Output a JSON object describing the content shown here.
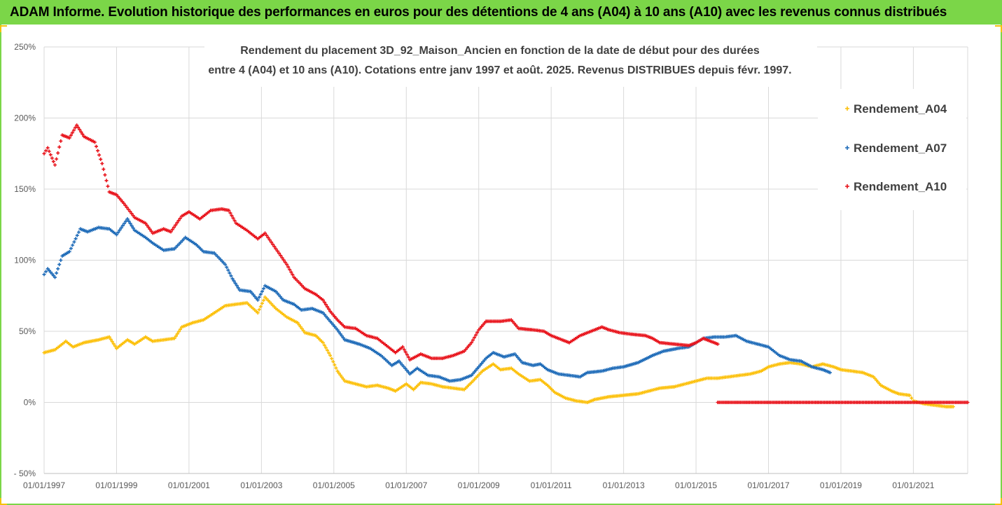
{
  "header": {
    "title": "ADAM Informe. Evolution historique des performances en euros pour des détentions de 4 ans (A04) à 10 ans (A10) avec les revenus connus distribués"
  },
  "chart_data": {
    "type": "scatter",
    "subtitle_line1": "Rendement du placement 3D_92_Maison_Ancien en fonction de la date de début pour des durées",
    "subtitle_line2": "entre 4 (A04) et 10 ans (A10). Cotations entre janv 1997 et août. 2025. Revenus DISTRIBUES depuis févr. 1997.",
    "ylim": [
      -50,
      250
    ],
    "yticks": [
      "250%",
      "200%",
      "150%",
      "100%",
      "50%",
      "0%",
      "- 50%"
    ],
    "ytick_values": [
      250,
      200,
      150,
      100,
      50,
      0,
      -50
    ],
    "xlim": [
      1997.0,
      2022.5
    ],
    "xticks": [
      "01/01/1997",
      "01/01/1999",
      "01/01/2001",
      "01/01/2003",
      "01/01/2005",
      "01/01/2007",
      "01/01/2009",
      "01/01/2011",
      "01/01/2013",
      "01/01/2015",
      "01/01/2017",
      "01/01/2019",
      "01/01/2021"
    ],
    "xtick_values": [
      1997,
      1999,
      2001,
      2003,
      2005,
      2007,
      2009,
      2011,
      2013,
      2015,
      2017,
      2019,
      2021
    ],
    "grid": true,
    "legend_position": "right",
    "series": [
      {
        "name": "Rendement_A04",
        "color": "#fcc00a",
        "points": [
          [
            1997.0,
            35
          ],
          [
            1997.3,
            37
          ],
          [
            1997.6,
            43
          ],
          [
            1997.8,
            39
          ],
          [
            1998.1,
            42
          ],
          [
            1998.5,
            44
          ],
          [
            1998.8,
            46
          ],
          [
            1999.0,
            38
          ],
          [
            1999.3,
            44
          ],
          [
            1999.5,
            41
          ],
          [
            1999.8,
            46
          ],
          [
            2000.0,
            43
          ],
          [
            2000.3,
            44
          ],
          [
            2000.6,
            45
          ],
          [
            2000.8,
            53
          ],
          [
            2001.1,
            56
          ],
          [
            2001.4,
            58
          ],
          [
            2001.7,
            63
          ],
          [
            2002.0,
            68
          ],
          [
            2002.3,
            69
          ],
          [
            2002.6,
            70
          ],
          [
            2002.9,
            63
          ],
          [
            2003.1,
            74
          ],
          [
            2003.4,
            66
          ],
          [
            2003.7,
            60
          ],
          [
            2004.0,
            56
          ],
          [
            2004.2,
            49
          ],
          [
            2004.5,
            47
          ],
          [
            2004.7,
            42
          ],
          [
            2004.9,
            33
          ],
          [
            2005.1,
            22
          ],
          [
            2005.3,
            15
          ],
          [
            2005.6,
            13
          ],
          [
            2005.9,
            11
          ],
          [
            2006.2,
            12
          ],
          [
            2006.5,
            10
          ],
          [
            2006.7,
            8
          ],
          [
            2007.0,
            13
          ],
          [
            2007.2,
            9
          ],
          [
            2007.4,
            14
          ],
          [
            2007.7,
            13
          ],
          [
            2008.0,
            11
          ],
          [
            2008.3,
            10
          ],
          [
            2008.6,
            9
          ],
          [
            2008.8,
            14
          ],
          [
            2009.1,
            22
          ],
          [
            2009.4,
            27
          ],
          [
            2009.6,
            23
          ],
          [
            2009.9,
            24
          ],
          [
            2010.1,
            20
          ],
          [
            2010.4,
            15
          ],
          [
            2010.7,
            16
          ],
          [
            2010.9,
            12
          ],
          [
            2011.1,
            7
          ],
          [
            2011.4,
            3
          ],
          [
            2011.7,
            1
          ],
          [
            2012.0,
            0
          ],
          [
            2012.2,
            2
          ],
          [
            2012.6,
            4
          ],
          [
            2013.0,
            5
          ],
          [
            2013.4,
            6
          ],
          [
            2013.7,
            8
          ],
          [
            2014.0,
            10
          ],
          [
            2014.4,
            11
          ],
          [
            2014.7,
            13
          ],
          [
            2015.0,
            15
          ],
          [
            2015.3,
            17
          ],
          [
            2015.6,
            17
          ],
          [
            2015.9,
            18
          ],
          [
            2016.2,
            19
          ],
          [
            2016.5,
            20
          ],
          [
            2016.8,
            22
          ],
          [
            2017.0,
            25
          ],
          [
            2017.3,
            27
          ],
          [
            2017.6,
            28
          ],
          [
            2017.9,
            27
          ],
          [
            2018.2,
            25
          ],
          [
            2018.5,
            27
          ],
          [
            2018.8,
            25
          ],
          [
            2019.0,
            23
          ],
          [
            2019.3,
            22
          ],
          [
            2019.6,
            21
          ],
          [
            2019.9,
            18
          ],
          [
            2020.1,
            12
          ],
          [
            2020.4,
            8
          ],
          [
            2020.6,
            6
          ],
          [
            2020.9,
            5
          ],
          [
            2021.0,
            1
          ],
          [
            2021.3,
            -1
          ],
          [
            2021.6,
            -2
          ],
          [
            2021.9,
            -3
          ],
          [
            2022.1,
            -3
          ]
        ]
      },
      {
        "name": "Rendement_A07",
        "color": "#1e6bb8",
        "points": [
          [
            1997.0,
            90
          ],
          [
            1997.1,
            94
          ],
          [
            1997.3,
            88
          ],
          [
            1997.5,
            103
          ],
          [
            1997.7,
            106
          ],
          [
            1998.0,
            122
          ],
          [
            1998.2,
            120
          ],
          [
            1998.5,
            123
          ],
          [
            1998.8,
            122
          ],
          [
            1999.0,
            118
          ],
          [
            1999.3,
            129
          ],
          [
            1999.5,
            121
          ],
          [
            1999.8,
            116
          ],
          [
            2000.0,
            112
          ],
          [
            2000.3,
            107
          ],
          [
            2000.6,
            108
          ],
          [
            2000.9,
            116
          ],
          [
            2001.2,
            111
          ],
          [
            2001.4,
            106
          ],
          [
            2001.7,
            105
          ],
          [
            2002.0,
            97
          ],
          [
            2002.2,
            87
          ],
          [
            2002.4,
            79
          ],
          [
            2002.7,
            78
          ],
          [
            2002.9,
            72
          ],
          [
            2003.1,
            82
          ],
          [
            2003.4,
            78
          ],
          [
            2003.6,
            72
          ],
          [
            2003.9,
            69
          ],
          [
            2004.1,
            65
          ],
          [
            2004.4,
            66
          ],
          [
            2004.7,
            63
          ],
          [
            2004.9,
            57
          ],
          [
            2005.1,
            51
          ],
          [
            2005.3,
            44
          ],
          [
            2005.7,
            41
          ],
          [
            2006.0,
            38
          ],
          [
            2006.3,
            33
          ],
          [
            2006.6,
            26
          ],
          [
            2006.8,
            29
          ],
          [
            2007.1,
            20
          ],
          [
            2007.3,
            24
          ],
          [
            2007.6,
            19
          ],
          [
            2007.9,
            18
          ],
          [
            2008.2,
            15
          ],
          [
            2008.5,
            16
          ],
          [
            2008.8,
            19
          ],
          [
            2009.0,
            25
          ],
          [
            2009.2,
            31
          ],
          [
            2009.4,
            35
          ],
          [
            2009.7,
            32
          ],
          [
            2010.0,
            34
          ],
          [
            2010.2,
            28
          ],
          [
            2010.5,
            26
          ],
          [
            2010.7,
            27
          ],
          [
            2010.9,
            23
          ],
          [
            2011.2,
            20
          ],
          [
            2011.5,
            19
          ],
          [
            2011.8,
            18
          ],
          [
            2012.0,
            21
          ],
          [
            2012.4,
            22
          ],
          [
            2012.7,
            24
          ],
          [
            2013.0,
            25
          ],
          [
            2013.4,
            28
          ],
          [
            2013.8,
            33
          ],
          [
            2014.1,
            36
          ],
          [
            2014.5,
            38
          ],
          [
            2014.8,
            39
          ],
          [
            2015.0,
            42
          ],
          [
            2015.2,
            45
          ],
          [
            2015.5,
            46
          ],
          [
            2015.8,
            46
          ],
          [
            2016.1,
            47
          ],
          [
            2016.4,
            43
          ],
          [
            2016.7,
            41
          ],
          [
            2017.0,
            39
          ],
          [
            2017.3,
            33
          ],
          [
            2017.6,
            30
          ],
          [
            2017.9,
            29
          ],
          [
            2018.2,
            25
          ],
          [
            2018.5,
            23
          ],
          [
            2018.7,
            21
          ]
        ]
      },
      {
        "name": "Rendement_A10",
        "color": "#e8131b",
        "points": [
          [
            1997.0,
            175
          ],
          [
            1997.1,
            179
          ],
          [
            1997.3,
            167
          ],
          [
            1997.5,
            188
          ],
          [
            1997.7,
            186
          ],
          [
            1997.9,
            195
          ],
          [
            1998.1,
            187
          ],
          [
            1998.4,
            183
          ],
          [
            1998.6,
            168
          ],
          [
            1998.8,
            148
          ],
          [
            1999.0,
            146
          ],
          [
            1999.2,
            140
          ],
          [
            1999.5,
            130
          ],
          [
            1999.8,
            126
          ],
          [
            2000.0,
            119
          ],
          [
            2000.3,
            122
          ],
          [
            2000.5,
            120
          ],
          [
            2000.8,
            131
          ],
          [
            2001.0,
            134
          ],
          [
            2001.3,
            129
          ],
          [
            2001.6,
            135
          ],
          [
            2001.9,
            136
          ],
          [
            2002.1,
            135
          ],
          [
            2002.3,
            126
          ],
          [
            2002.6,
            121
          ],
          [
            2002.9,
            115
          ],
          [
            2003.1,
            119
          ],
          [
            2003.4,
            108
          ],
          [
            2003.7,
            97
          ],
          [
            2003.9,
            88
          ],
          [
            2004.2,
            80
          ],
          [
            2004.5,
            76
          ],
          [
            2004.7,
            72
          ],
          [
            2004.9,
            64
          ],
          [
            2005.1,
            58
          ],
          [
            2005.3,
            53
          ],
          [
            2005.6,
            52
          ],
          [
            2005.9,
            47
          ],
          [
            2006.2,
            45
          ],
          [
            2006.5,
            39
          ],
          [
            2006.7,
            35
          ],
          [
            2006.9,
            39
          ],
          [
            2007.1,
            30
          ],
          [
            2007.4,
            34
          ],
          [
            2007.7,
            31
          ],
          [
            2008.0,
            31
          ],
          [
            2008.3,
            33
          ],
          [
            2008.6,
            36
          ],
          [
            2008.8,
            42
          ],
          [
            2009.0,
            51
          ],
          [
            2009.2,
            57
          ],
          [
            2009.6,
            57
          ],
          [
            2009.9,
            58
          ],
          [
            2010.1,
            52
          ],
          [
            2010.5,
            51
          ],
          [
            2010.8,
            50
          ],
          [
            2011.0,
            47
          ],
          [
            2011.3,
            44
          ],
          [
            2011.5,
            42
          ],
          [
            2011.8,
            47
          ],
          [
            2012.1,
            50
          ],
          [
            2012.4,
            53
          ],
          [
            2012.6,
            51
          ],
          [
            2012.9,
            49
          ],
          [
            2013.2,
            48
          ],
          [
            2013.6,
            47
          ],
          [
            2013.8,
            45
          ],
          [
            2014.0,
            42
          ],
          [
            2014.4,
            41
          ],
          [
            2014.8,
            40
          ],
          [
            2015.0,
            42
          ],
          [
            2015.2,
            45
          ],
          [
            2015.4,
            43
          ],
          [
            2015.6,
            41
          ]
        ]
      }
    ],
    "extra_series_zero": {
      "series_name": "Rendement_A10",
      "from": 2015.6,
      "to": 2022.5,
      "value": 0
    }
  }
}
